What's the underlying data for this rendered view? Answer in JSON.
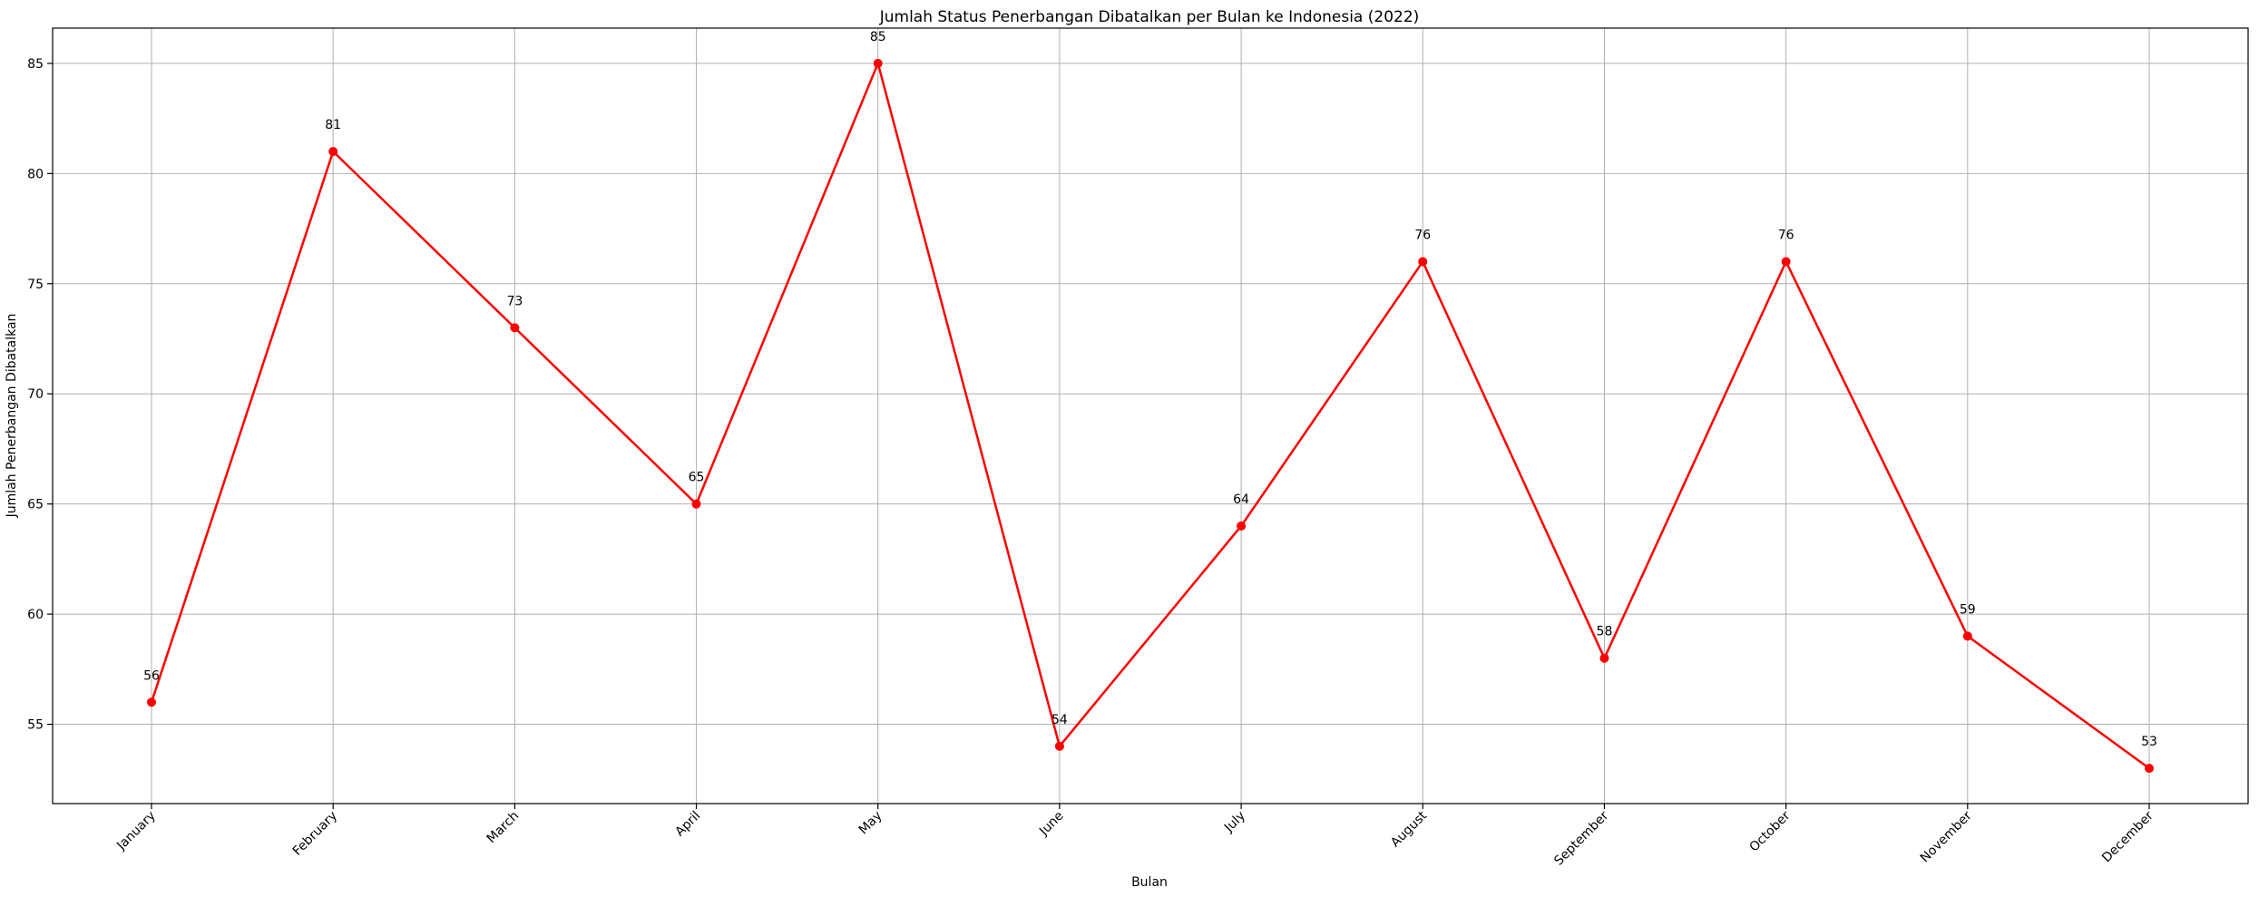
{
  "chart_data": {
    "type": "line",
    "title": "Jumlah Status Penerbangan Dibatalkan per Bulan ke Indonesia (2022)",
    "xlabel": "Bulan",
    "ylabel": "Jumlah Penerbangan Dibatalkan",
    "categories": [
      "January",
      "February",
      "March",
      "April",
      "May",
      "June",
      "July",
      "August",
      "September",
      "October",
      "November",
      "December"
    ],
    "values": [
      56,
      81,
      73,
      65,
      85,
      54,
      64,
      76,
      58,
      76,
      59,
      53
    ],
    "ylim": [
      51.4,
      86.6
    ],
    "yticks": [
      55,
      60,
      65,
      70,
      75,
      80,
      85
    ],
    "grid": true,
    "marker": "circle",
    "colors": {
      "line": "#ff0000",
      "grid": "#b0b0b0",
      "axis": "#000000"
    },
    "data_labels": true
  }
}
